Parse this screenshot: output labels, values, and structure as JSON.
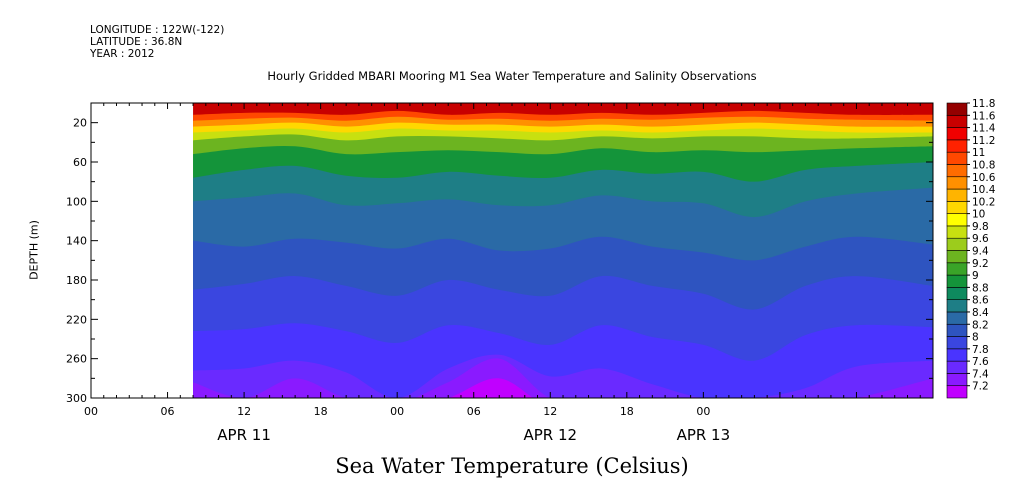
{
  "meta": {
    "longitude": "LONGITUDE : 122W(-122)",
    "latitude": "LATITUDE : 36.8N",
    "year": "YEAR : 2012"
  },
  "chart_data": {
    "type": "heatmap",
    "title": "Hourly Gridded MBARI Mooring M1 Sea Water Temperature and Salinity Observations",
    "ylabel": "DEPTH (m)",
    "xlabel": "",
    "caption": "Sea Water Temperature (Celsius)",
    "y_range": [
      0,
      300
    ],
    "y_inverted": true,
    "y_ticks": [
      20,
      60,
      100,
      140,
      180,
      220,
      260,
      300
    ],
    "x_range_hours": [
      0,
      66
    ],
    "x_tick_labels": [
      "00",
      "06",
      "12",
      "18",
      "00",
      "06",
      "12",
      "18",
      "00"
    ],
    "x_tick_hours": [
      0,
      6,
      12,
      18,
      24,
      30,
      36,
      42,
      48
    ],
    "date_labels": [
      {
        "label": "APR 11",
        "hour": 12
      },
      {
        "label": "APR 12",
        "hour": 36
      },
      {
        "label": "APR 13",
        "hour": 48
      }
    ],
    "data_start_hour": 8,
    "contour_levels": [
      7.2,
      7.4,
      7.6,
      7.8,
      8,
      8.2,
      8.4,
      8.6,
      8.8,
      9,
      9.2,
      9.4,
      9.6,
      9.8,
      10,
      10.2,
      10.4,
      10.6,
      10.8,
      11,
      11.2,
      11.4,
      11.6,
      11.8
    ],
    "level_labels": [
      "7.2",
      "7.4",
      "7.6",
      "7.8",
      "8",
      "8.2",
      "8.4",
      "8.6",
      "8.8",
      "9",
      "9.2",
      "9.4",
      "9.6",
      "9.8",
      "10",
      "10.2",
      "10.4",
      "10.6",
      "10.8",
      "11",
      "11.2",
      "11.4",
      "11.6",
      "11.8"
    ],
    "level_colors": [
      "#c000ff",
      "#8a1aff",
      "#6a2aff",
      "#4a34ff",
      "#3a46e0",
      "#2e54c0",
      "#2a6aa6",
      "#1e7e86",
      "#0e8a5e",
      "#14943a",
      "#3aa428",
      "#6cb420",
      "#9ccc1c",
      "#c8e010",
      "#ffff00",
      "#ffd800",
      "#ffb400",
      "#ff9000",
      "#ff6c00",
      "#ff4800",
      "#ff2200",
      "#f00000",
      "#c80000",
      "#940000"
    ],
    "isotherm_hours": [
      8,
      12,
      16,
      20,
      24,
      28,
      32,
      36,
      40,
      44,
      48,
      52,
      56,
      60,
      66
    ],
    "isotherms": [
      {
        "level": 11.0,
        "depth": [
          12,
          10,
          10,
          12,
          8,
          12,
          10,
          12,
          10,
          12,
          10,
          8,
          10,
          12,
          12
        ]
      },
      {
        "level": 10.6,
        "depth": [
          18,
          16,
          15,
          18,
          14,
          17,
          16,
          18,
          16,
          17,
          15,
          14,
          16,
          17,
          18
        ]
      },
      {
        "level": 10.2,
        "depth": [
          24,
          22,
          20,
          24,
          20,
          22,
          22,
          24,
          22,
          24,
          22,
          20,
          22,
          24,
          24
        ]
      },
      {
        "level": 9.8,
        "depth": [
          30,
          28,
          26,
          30,
          26,
          28,
          28,
          30,
          28,
          30,
          28,
          26,
          28,
          30,
          30
        ]
      },
      {
        "level": 9.4,
        "depth": [
          38,
          34,
          32,
          38,
          34,
          34,
          36,
          38,
          34,
          36,
          34,
          34,
          36,
          36,
          34
        ]
      },
      {
        "level": 9.0,
        "depth": [
          52,
          46,
          44,
          52,
          50,
          48,
          50,
          52,
          46,
          50,
          48,
          50,
          48,
          46,
          44
        ]
      },
      {
        "level": 8.6,
        "depth": [
          76,
          68,
          64,
          74,
          76,
          70,
          74,
          76,
          68,
          72,
          70,
          80,
          68,
          64,
          60
        ]
      },
      {
        "level": 8.4,
        "depth": [
          100,
          96,
          92,
          104,
          102,
          98,
          104,
          104,
          94,
          100,
          102,
          116,
          100,
          92,
          86
        ]
      },
      {
        "level": 8.2,
        "depth": [
          140,
          146,
          138,
          142,
          148,
          138,
          150,
          148,
          136,
          146,
          152,
          160,
          146,
          136,
          144
        ]
      },
      {
        "level": 8.0,
        "depth": [
          190,
          184,
          176,
          186,
          196,
          180,
          190,
          196,
          176,
          186,
          194,
          210,
          186,
          176,
          186
        ]
      },
      {
        "level": 7.8,
        "depth": [
          232,
          230,
          224,
          232,
          244,
          226,
          234,
          246,
          226,
          238,
          246,
          262,
          236,
          226,
          228
        ]
      },
      {
        "level": 7.6,
        "depth": [
          272,
          270,
          262,
          274,
          300,
          270,
          256,
          278,
          270,
          286,
          300,
          300,
          290,
          268,
          262
        ]
      },
      {
        "level": 7.4,
        "depth": [
          284,
          300,
          280,
          300,
          305,
          284,
          260,
          300,
          300,
          305,
          305,
          305,
          305,
          300,
          280
        ]
      },
      {
        "level": 7.2,
        "depth": [
          310,
          310,
          310,
          310,
          310,
          300,
          280,
          310,
          310,
          310,
          310,
          310,
          310,
          310,
          310
        ]
      }
    ]
  }
}
